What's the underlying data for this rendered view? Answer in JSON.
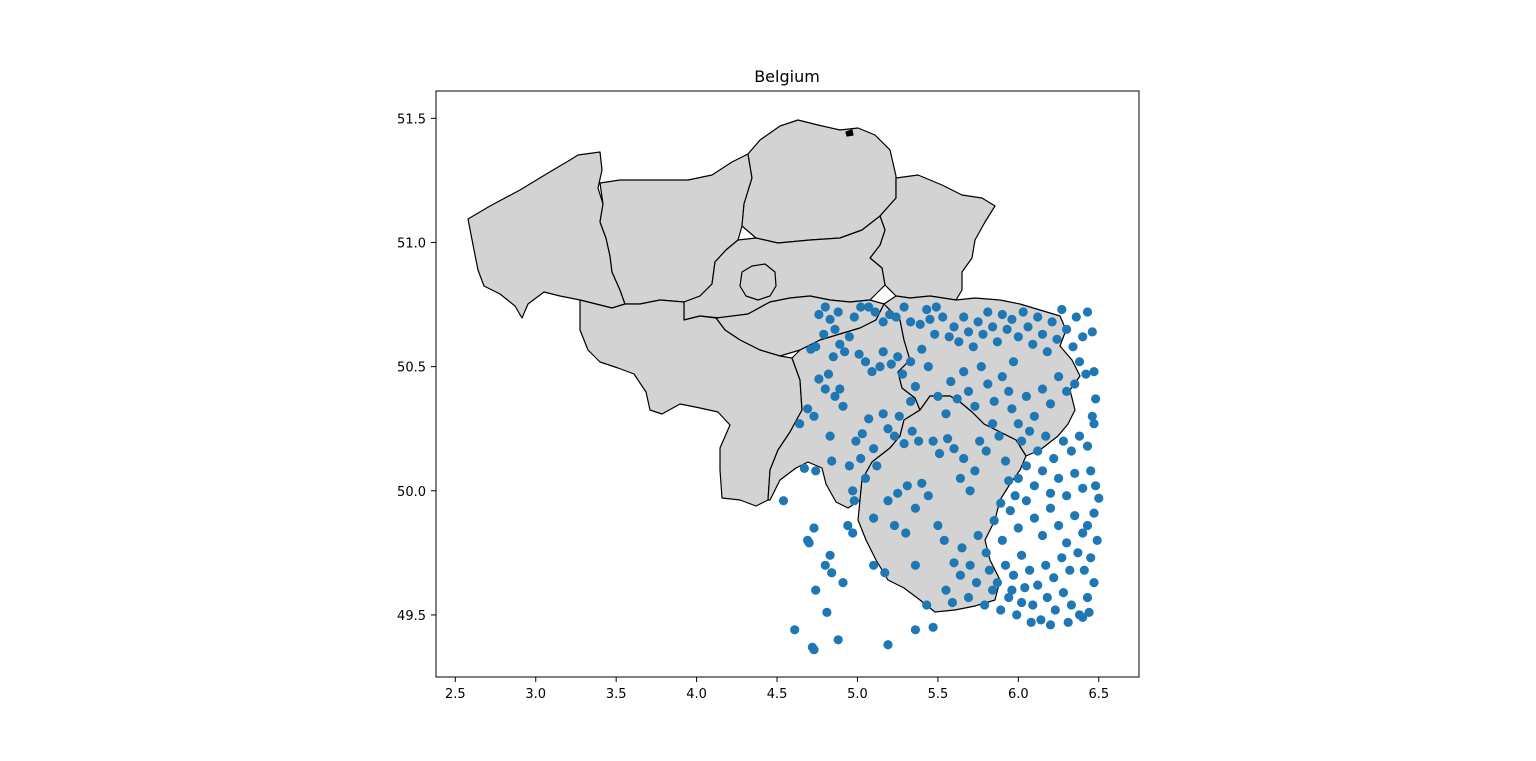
{
  "chart_data": {
    "type": "scatter",
    "title": "Belgium",
    "xlabel": "",
    "ylabel": "",
    "xlim": [
      2.38,
      6.75
    ],
    "ylim": [
      49.25,
      51.61
    ],
    "xticks": [
      2.5,
      3.0,
      3.5,
      4.0,
      4.5,
      5.0,
      5.5,
      6.0,
      6.5
    ],
    "xtick_labels": [
      "2.5",
      "3.0",
      "3.5",
      "4.0",
      "4.5",
      "5.0",
      "5.5",
      "6.0",
      "6.5"
    ],
    "yticks": [
      49.5,
      50.0,
      50.5,
      51.0,
      51.5
    ],
    "ytick_labels": [
      "49.5",
      "50.0",
      "50.5",
      "51.0",
      "51.5"
    ],
    "grid": false,
    "colors": {
      "land": "#d3d3d3",
      "border": "#000000",
      "points": "#1f77b4"
    },
    "map": {
      "regions": [
        "West Flanders",
        "East Flanders",
        "Antwerp",
        "Limburg",
        "Flemish Brabant",
        "Brussels",
        "Walloon Brabant",
        "Hainaut",
        "Namur",
        "Liege",
        "Luxembourg"
      ]
    },
    "points": [
      [
        4.54,
        49.96
      ],
      [
        4.61,
        49.44
      ],
      [
        4.72,
        49.37
      ],
      [
        4.73,
        49.36
      ],
      [
        4.7,
        49.79
      ],
      [
        4.69,
        49.8
      ],
      [
        4.74,
        49.6
      ],
      [
        4.81,
        49.51
      ],
      [
        4.88,
        49.4
      ],
      [
        4.8,
        49.7
      ],
      [
        4.84,
        49.67
      ],
      [
        4.83,
        49.74
      ],
      [
        4.91,
        49.63
      ],
      [
        4.73,
        49.85
      ],
      [
        5.19,
        49.38
      ],
      [
        5.36,
        49.44
      ],
      [
        5.47,
        49.45
      ],
      [
        5.43,
        49.54
      ],
      [
        5.17,
        49.67
      ],
      [
        5.1,
        49.7
      ],
      [
        5.36,
        49.7
      ],
      [
        4.94,
        49.86
      ],
      [
        4.97,
        49.83
      ],
      [
        5.1,
        49.89
      ],
      [
        5.23,
        49.86
      ],
      [
        5.3,
        49.83
      ],
      [
        4.64,
        50.27
      ],
      [
        4.67,
        50.09
      ],
      [
        4.74,
        50.08
      ],
      [
        4.69,
        50.33
      ],
      [
        4.73,
        50.3
      ],
      [
        4.76,
        50.45
      ],
      [
        4.8,
        50.41
      ],
      [
        4.83,
        50.22
      ],
      [
        4.84,
        50.12
      ],
      [
        4.82,
        50.47
      ],
      [
        4.86,
        50.38
      ],
      [
        4.89,
        50.41
      ],
      [
        4.91,
        50.34
      ],
      [
        4.85,
        50.54
      ],
      [
        4.74,
        50.58
      ],
      [
        4.71,
        50.57
      ],
      [
        4.79,
        50.63
      ],
      [
        4.83,
        50.69
      ],
      [
        4.86,
        50.65
      ],
      [
        4.89,
        50.59
      ],
      [
        4.92,
        50.56
      ],
      [
        4.95,
        50.62
      ],
      [
        4.98,
        50.7
      ],
      [
        4.76,
        50.71
      ],
      [
        4.8,
        50.74
      ],
      [
        4.88,
        50.72
      ],
      [
        5.02,
        50.74
      ],
      [
        5.07,
        50.74
      ],
      [
        5.11,
        50.72
      ],
      [
        5.16,
        50.68
      ],
      [
        5.2,
        50.71
      ],
      [
        5.24,
        50.7
      ],
      [
        5.29,
        50.74
      ],
      [
        5.33,
        50.68
      ],
      [
        5.39,
        50.67
      ],
      [
        5.43,
        50.73
      ],
      [
        5.45,
        50.69
      ],
      [
        5.49,
        50.74
      ],
      [
        5.53,
        50.7
      ],
      [
        5.01,
        50.55
      ],
      [
        5.05,
        50.52
      ],
      [
        5.09,
        50.48
      ],
      [
        5.14,
        50.5
      ],
      [
        5.16,
        50.56
      ],
      [
        5.21,
        50.51
      ],
      [
        5.25,
        50.54
      ],
      [
        5.28,
        50.47
      ],
      [
        5.33,
        50.52
      ],
      [
        5.36,
        50.42
      ],
      [
        5.4,
        50.57
      ],
      [
        5.44,
        50.5
      ],
      [
        5.48,
        50.63
      ],
      [
        4.99,
        50.2
      ],
      [
        5.03,
        50.23
      ],
      [
        5.07,
        50.29
      ],
      [
        5.1,
        50.17
      ],
      [
        5.12,
        50.1
      ],
      [
        5.16,
        50.31
      ],
      [
        5.19,
        50.25
      ],
      [
        5.23,
        50.22
      ],
      [
        5.26,
        50.3
      ],
      [
        5.29,
        50.19
      ],
      [
        5.33,
        50.36
      ],
      [
        5.34,
        50.24
      ],
      [
        5.38,
        50.2
      ],
      [
        4.95,
        50.1
      ],
      [
        4.97,
        50.0
      ],
      [
        5.02,
        50.13
      ],
      [
        5.05,
        50.05
      ],
      [
        4.98,
        49.96
      ],
      [
        5.19,
        49.96
      ],
      [
        5.25,
        49.99
      ],
      [
        5.31,
        50.02
      ],
      [
        5.36,
        49.93
      ],
      [
        5.4,
        50.03
      ],
      [
        5.44,
        49.98
      ],
      [
        5.5,
        49.86
      ],
      [
        5.54,
        49.8
      ],
      [
        5.47,
        50.2
      ],
      [
        5.51,
        50.15
      ],
      [
        5.56,
        50.21
      ],
      [
        5.6,
        50.17
      ],
      [
        5.64,
        50.05
      ],
      [
        5.66,
        50.13
      ],
      [
        5.7,
        50.0
      ],
      [
        5.73,
        50.08
      ],
      [
        5.76,
        50.2
      ],
      [
        5.8,
        50.16
      ],
      [
        5.84,
        50.27
      ],
      [
        5.88,
        50.22
      ],
      [
        5.92,
        50.12
      ],
      [
        5.5,
        50.38
      ],
      [
        5.55,
        50.31
      ],
      [
        5.58,
        50.44
      ],
      [
        5.62,
        50.37
      ],
      [
        5.66,
        50.48
      ],
      [
        5.69,
        50.4
      ],
      [
        5.73,
        50.34
      ],
      [
        5.77,
        50.5
      ],
      [
        5.81,
        50.43
      ],
      [
        5.85,
        50.36
      ],
      [
        5.9,
        50.46
      ],
      [
        5.94,
        50.4
      ],
      [
        5.97,
        50.52
      ],
      [
        5.57,
        50.62
      ],
      [
        5.6,
        50.66
      ],
      [
        5.63,
        50.6
      ],
      [
        5.66,
        50.7
      ],
      [
        5.69,
        50.64
      ],
      [
        5.72,
        50.58
      ],
      [
        5.75,
        50.68
      ],
      [
        5.78,
        50.63
      ],
      [
        5.81,
        50.72
      ],
      [
        5.84,
        50.66
      ],
      [
        5.87,
        50.6
      ],
      [
        5.9,
        50.71
      ],
      [
        5.93,
        50.65
      ],
      [
        5.96,
        50.69
      ],
      [
        6.0,
        50.62
      ],
      [
        6.03,
        50.72
      ],
      [
        6.06,
        50.66
      ],
      [
        6.09,
        50.59
      ],
      [
        6.12,
        50.7
      ],
      [
        6.15,
        50.63
      ],
      [
        6.18,
        50.56
      ],
      [
        6.21,
        50.68
      ],
      [
        6.24,
        50.61
      ],
      [
        6.27,
        50.73
      ],
      [
        6.3,
        50.65
      ],
      [
        6.34,
        50.58
      ],
      [
        6.36,
        50.7
      ],
      [
        6.4,
        50.62
      ],
      [
        6.43,
        50.72
      ],
      [
        6.46,
        50.64
      ],
      [
        6.38,
        50.52
      ],
      [
        6.42,
        50.47
      ],
      [
        6.47,
        50.48
      ],
      [
        6.35,
        50.43
      ],
      [
        6.3,
        50.4
      ],
      [
        6.25,
        50.46
      ],
      [
        6.2,
        50.35
      ],
      [
        6.15,
        50.41
      ],
      [
        6.1,
        50.3
      ],
      [
        6.05,
        50.38
      ],
      [
        6.0,
        50.27
      ],
      [
        5.96,
        50.33
      ],
      [
        6.02,
        50.2
      ],
      [
        6.07,
        50.24
      ],
      [
        6.12,
        50.16
      ],
      [
        6.17,
        50.22
      ],
      [
        6.22,
        50.13
      ],
      [
        6.28,
        50.2
      ],
      [
        6.33,
        50.16
      ],
      [
        6.38,
        50.22
      ],
      [
        6.43,
        50.18
      ],
      [
        6.47,
        50.27
      ],
      [
        6.48,
        50.37
      ],
      [
        6.46,
        50.3
      ],
      [
        6.45,
        50.08
      ],
      [
        6.48,
        50.02
      ],
      [
        6.5,
        49.97
      ],
      [
        6.47,
        49.91
      ],
      [
        6.43,
        49.86
      ],
      [
        6.49,
        49.8
      ],
      [
        6.45,
        49.73
      ],
      [
        6.41,
        49.68
      ],
      [
        6.47,
        49.63
      ],
      [
        6.43,
        49.57
      ],
      [
        6.44,
        49.51
      ],
      [
        6.38,
        49.5
      ],
      [
        6.33,
        49.54
      ],
      [
        6.28,
        49.59
      ],
      [
        6.23,
        49.52
      ],
      [
        6.18,
        49.57
      ],
      [
        6.14,
        49.48
      ],
      [
        6.09,
        49.54
      ],
      [
        6.04,
        49.61
      ],
      [
        5.99,
        49.5
      ],
      [
        5.94,
        49.57
      ],
      [
        5.89,
        49.52
      ],
      [
        5.84,
        49.6
      ],
      [
        5.79,
        49.54
      ],
      [
        5.74,
        49.63
      ],
      [
        5.69,
        49.57
      ],
      [
        5.64,
        49.66
      ],
      [
        5.59,
        49.55
      ],
      [
        5.55,
        49.6
      ],
      [
        5.6,
        49.71
      ],
      [
        5.65,
        49.77
      ],
      [
        5.7,
        49.7
      ],
      [
        5.75,
        49.82
      ],
      [
        5.8,
        49.75
      ],
      [
        5.85,
        49.88
      ],
      [
        5.9,
        49.8
      ],
      [
        5.95,
        49.92
      ],
      [
        6.0,
        49.85
      ],
      [
        6.05,
        49.96
      ],
      [
        6.1,
        49.89
      ],
      [
        6.15,
        49.82
      ],
      [
        6.2,
        49.93
      ],
      [
        6.25,
        49.86
      ],
      [
        6.3,
        49.79
      ],
      [
        6.35,
        49.9
      ],
      [
        6.4,
        49.83
      ],
      [
        6.37,
        49.75
      ],
      [
        6.32,
        49.68
      ],
      [
        6.27,
        49.73
      ],
      [
        6.22,
        49.65
      ],
      [
        6.17,
        49.7
      ],
      [
        6.12,
        49.62
      ],
      [
        6.07,
        49.68
      ],
      [
        6.02,
        49.74
      ],
      [
        5.97,
        49.66
      ],
      [
        5.92,
        49.7
      ],
      [
        5.87,
        49.63
      ],
      [
        5.82,
        49.68
      ],
      [
        6.0,
        50.05
      ],
      [
        6.05,
        50.1
      ],
      [
        6.1,
        50.02
      ],
      [
        6.15,
        50.08
      ],
      [
        6.2,
        49.99
      ],
      [
        6.25,
        50.05
      ],
      [
        6.3,
        49.98
      ],
      [
        6.35,
        50.07
      ],
      [
        6.4,
        50.01
      ],
      [
        5.98,
        49.98
      ],
      [
        5.94,
        50.04
      ],
      [
        5.89,
        49.95
      ],
      [
        5.96,
        49.6
      ],
      [
        6.02,
        49.55
      ],
      [
        6.08,
        49.47
      ],
      [
        6.2,
        49.46
      ],
      [
        6.31,
        49.47
      ],
      [
        6.4,
        49.49
      ]
    ]
  }
}
